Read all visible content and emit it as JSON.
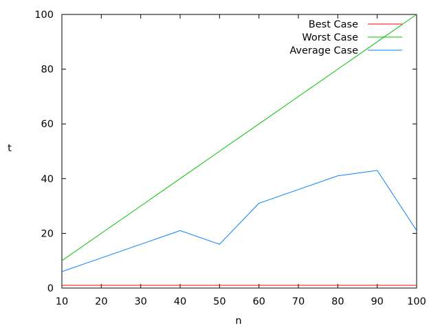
{
  "chart_data": {
    "type": "line",
    "xlabel": "n",
    "ylabel": "t",
    "xlim": [
      10,
      100
    ],
    "ylim": [
      0,
      100
    ],
    "xticks": [
      10,
      20,
      30,
      40,
      50,
      60,
      70,
      80,
      90,
      100
    ],
    "yticks": [
      0,
      20,
      40,
      60,
      80,
      100
    ],
    "grid": false,
    "legend_position": "top-right",
    "x": [
      10,
      20,
      30,
      40,
      50,
      60,
      70,
      80,
      90,
      100
    ],
    "series": [
      {
        "name": "Best Case",
        "color": "#ff0000",
        "values": [
          1,
          1,
          1,
          1,
          1,
          1,
          1,
          1,
          1,
          1
        ]
      },
      {
        "name": "Worst Case",
        "color": "#00c000",
        "values": [
          10,
          20,
          30,
          40,
          50,
          60,
          70,
          80,
          90,
          100
        ]
      },
      {
        "name": "Average Case",
        "color": "#0080ff",
        "values": [
          6,
          11,
          16,
          21,
          16,
          31,
          36,
          41,
          43,
          21
        ]
      }
    ]
  }
}
